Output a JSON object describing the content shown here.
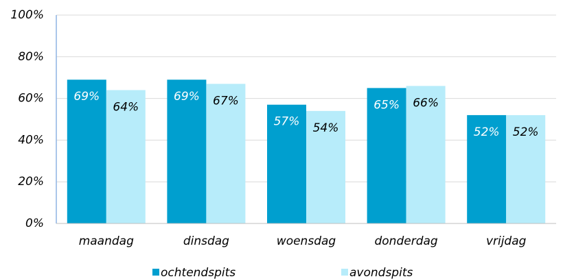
{
  "chart_data": {
    "type": "bar",
    "categories": [
      "maandag",
      "dinsdag",
      "woensdag",
      "donderdag",
      "vrijdag"
    ],
    "series": [
      {
        "name": "ochtendspits",
        "color": "#009fcf",
        "values": [
          69,
          69,
          57,
          65,
          52
        ],
        "value_labels": [
          "69%",
          "69%",
          "57%",
          "65%",
          "52%"
        ]
      },
      {
        "name": "avondspits",
        "color": "#b7ecfa",
        "values": [
          64,
          67,
          54,
          66,
          52
        ],
        "value_labels": [
          "64%",
          "67%",
          "54%",
          "66%",
          "52%"
        ]
      }
    ],
    "ylim": [
      0,
      100
    ],
    "yticks": [
      {
        "value": 0,
        "label": "0%"
      },
      {
        "value": 20,
        "label": "20%"
      },
      {
        "value": 40,
        "label": "40%"
      },
      {
        "value": 60,
        "label": "60%"
      },
      {
        "value": 80,
        "label": "80%"
      },
      {
        "value": 100,
        "label": "100%"
      }
    ],
    "grid": true,
    "legend": "bottom"
  }
}
